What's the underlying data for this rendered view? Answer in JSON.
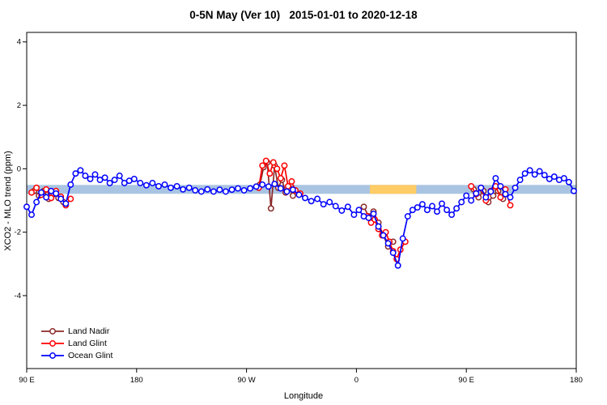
{
  "title": "0-5N May (Ver 10)   2015-01-01 to 2020-12-18",
  "chart_data": {
    "type": "line",
    "title": "0-5N May (Ver 10)   2015-01-01 to 2020-12-18",
    "xlabel": "Longitude",
    "ylabel": "XCO2 - MLO trend (ppm)",
    "xlim": [
      0,
      450
    ],
    "ylim": [
      -6.3,
      4.3
    ],
    "x_ticks": [
      {
        "pos": 0,
        "label": "90 E"
      },
      {
        "pos": 90,
        "label": "180"
      },
      {
        "pos": 180,
        "label": "90 W"
      },
      {
        "pos": 270,
        "label": "0"
      },
      {
        "pos": 360,
        "label": "90 E"
      },
      {
        "pos": 450,
        "label": "180"
      }
    ],
    "y_ticks": [
      -4,
      -2,
      0,
      2,
      4
    ],
    "grid": false,
    "legend_position": "bottom-left",
    "bands": [
      {
        "name": "reference-band",
        "x0": 0,
        "x1": 450,
        "y": -0.65,
        "half_height": 0.14,
        "color": "#a9c4e2"
      },
      {
        "name": "highlight-band",
        "x0": 281,
        "x1": 319,
        "y": -0.65,
        "half_height": 0.14,
        "color": "#ffcc66"
      }
    ],
    "series": [
      {
        "name": "Land Nadir",
        "color": "#8b2a2a",
        "segments": [
          [
            [
              6,
              -0.7
            ],
            [
              10,
              -0.85
            ],
            [
              14,
              -0.7
            ],
            [
              18,
              -0.95
            ],
            [
              22,
              -0.8
            ],
            [
              26,
              -0.92
            ],
            [
              30,
              -1.05
            ]
          ],
          [
            [
              191,
              -0.5
            ],
            [
              194,
              0.05
            ],
            [
              197,
              0.2
            ],
            [
              200,
              -1.25
            ],
            [
              203,
              0.1
            ],
            [
              206,
              -0.6
            ],
            [
              209,
              -0.35
            ],
            [
              212,
              -0.75
            ],
            [
              215,
              -0.6
            ],
            [
              218,
              -0.85
            ]
          ],
          [
            [
              276,
              -1.2
            ],
            [
              280,
              -1.5
            ],
            [
              284,
              -1.35
            ],
            [
              288,
              -1.7
            ],
            [
              292,
              -2.1
            ],
            [
              296,
              -2.45
            ],
            [
              300,
              -2.3
            ]
          ],
          [
            [
              366,
              -0.65
            ],
            [
              370,
              -0.9
            ],
            [
              374,
              -0.7
            ],
            [
              378,
              -1.05
            ],
            [
              382,
              -0.85
            ],
            [
              386,
              -0.7
            ],
            [
              390,
              -0.95
            ]
          ]
        ]
      },
      {
        "name": "Land Glint",
        "color": "#ff0000",
        "segments": [
          [
            [
              4,
              -0.75
            ],
            [
              8,
              -0.6
            ],
            [
              12,
              -0.82
            ],
            [
              16,
              -0.65
            ],
            [
              20,
              -0.92
            ],
            [
              24,
              -0.7
            ],
            [
              28,
              -0.88
            ],
            [
              32,
              -1.15
            ],
            [
              36,
              -0.95
            ]
          ],
          [
            [
              190,
              -0.6
            ],
            [
              193,
              0.1
            ],
            [
              196,
              0.25
            ],
            [
              199,
              -0.15
            ],
            [
              202,
              0.2
            ],
            [
              205,
              0.0
            ],
            [
              208,
              -0.3
            ],
            [
              211,
              0.1
            ],
            [
              214,
              -0.55
            ],
            [
              217,
              -0.4
            ],
            [
              220,
              -0.68
            ],
            [
              224,
              -0.78
            ]
          ],
          [
            [
              279,
              -1.5
            ],
            [
              282,
              -1.7
            ],
            [
              285,
              -1.6
            ],
            [
              288,
              -1.9
            ],
            [
              291,
              -2.1
            ],
            [
              294,
              -2.0
            ],
            [
              297,
              -2.3
            ],
            [
              300,
              -2.6
            ],
            [
              303,
              -2.85
            ],
            [
              306,
              -2.55
            ],
            [
              310,
              -2.3
            ]
          ],
          [
            [
              364,
              -0.55
            ],
            [
              368,
              -0.8
            ],
            [
              372,
              -0.6
            ],
            [
              376,
              -1.0
            ],
            [
              380,
              -0.7
            ],
            [
              384,
              -0.55
            ],
            [
              388,
              -0.9
            ],
            [
              392,
              -0.65
            ],
            [
              396,
              -1.15
            ]
          ]
        ]
      },
      {
        "name": "Ocean Glint",
        "color": "#0000ff",
        "segments": [
          [
            [
              0,
              -1.2
            ],
            [
              4,
              -1.45
            ],
            [
              8,
              -1.05
            ],
            [
              12,
              -0.75
            ],
            [
              16,
              -0.9
            ],
            [
              20,
              -0.7
            ],
            [
              24,
              -0.78
            ],
            [
              28,
              -0.95
            ],
            [
              32,
              -1.1
            ],
            [
              36,
              -0.5
            ],
            [
              40,
              -0.15
            ],
            [
              44,
              -0.05
            ],
            [
              48,
              -0.22
            ],
            [
              52,
              -0.32
            ],
            [
              56,
              -0.18
            ],
            [
              60,
              -0.35
            ],
            [
              64,
              -0.28
            ],
            [
              68,
              -0.45
            ],
            [
              72,
              -0.35
            ],
            [
              76,
              -0.22
            ],
            [
              80,
              -0.45
            ],
            [
              84,
              -0.38
            ],
            [
              88,
              -0.32
            ],
            [
              93,
              -0.45
            ],
            [
              98,
              -0.52
            ],
            [
              103,
              -0.45
            ],
            [
              108,
              -0.55
            ],
            [
              113,
              -0.5
            ],
            [
              118,
              -0.6
            ],
            [
              123,
              -0.55
            ],
            [
              128,
              -0.65
            ],
            [
              133,
              -0.6
            ],
            [
              138,
              -0.68
            ],
            [
              143,
              -0.72
            ],
            [
              148,
              -0.65
            ],
            [
              153,
              -0.72
            ],
            [
              158,
              -0.66
            ],
            [
              163,
              -0.72
            ],
            [
              168,
              -0.66
            ],
            [
              173,
              -0.62
            ],
            [
              178,
              -0.68
            ],
            [
              183,
              -0.62
            ],
            [
              188,
              -0.56
            ],
            [
              193,
              -0.5
            ],
            [
              198,
              -0.56
            ],
            [
              203,
              -0.48
            ],
            [
              208,
              -0.62
            ],
            [
              213,
              -0.72
            ],
            [
              218,
              -0.66
            ],
            [
              223,
              -0.82
            ],
            [
              228,
              -0.92
            ],
            [
              233,
              -1.02
            ],
            [
              238,
              -0.95
            ],
            [
              243,
              -1.12
            ],
            [
              248,
              -1.05
            ],
            [
              253,
              -1.18
            ],
            [
              258,
              -1.32
            ],
            [
              263,
              -1.2
            ],
            [
              268,
              -1.45
            ],
            [
              272,
              -1.3
            ],
            [
              276,
              -1.5
            ],
            [
              280,
              -1.55
            ],
            [
              284,
              -1.42
            ],
            [
              288,
              -1.82
            ],
            [
              292,
              -2.1
            ],
            [
              296,
              -2.35
            ],
            [
              300,
              -2.65
            ],
            [
              304,
              -3.05
            ],
            [
              308,
              -2.2
            ],
            [
              312,
              -1.5
            ],
            [
              316,
              -1.3
            ],
            [
              320,
              -1.22
            ],
            [
              324,
              -1.12
            ],
            [
              328,
              -1.3
            ],
            [
              332,
              -1.18
            ],
            [
              336,
              -1.35
            ],
            [
              340,
              -1.1
            ],
            [
              344,
              -1.3
            ],
            [
              348,
              -1.45
            ],
            [
              352,
              -1.25
            ],
            [
              356,
              -1.05
            ],
            [
              360,
              -0.85
            ],
            [
              364,
              -1.0
            ],
            [
              368,
              -0.78
            ],
            [
              372,
              -0.6
            ],
            [
              376,
              -0.9
            ],
            [
              380,
              -0.72
            ],
            [
              384,
              -0.3
            ],
            [
              388,
              -0.55
            ],
            [
              392,
              -0.8
            ],
            [
              396,
              -0.9
            ],
            [
              400,
              -0.6
            ],
            [
              404,
              -0.35
            ],
            [
              408,
              -0.15
            ],
            [
              412,
              -0.05
            ],
            [
              416,
              -0.18
            ],
            [
              420,
              -0.08
            ],
            [
              424,
              -0.2
            ],
            [
              428,
              -0.32
            ],
            [
              432,
              -0.25
            ],
            [
              436,
              -0.35
            ],
            [
              440,
              -0.3
            ],
            [
              444,
              -0.42
            ],
            [
              448,
              -0.7
            ]
          ]
        ]
      }
    ]
  }
}
